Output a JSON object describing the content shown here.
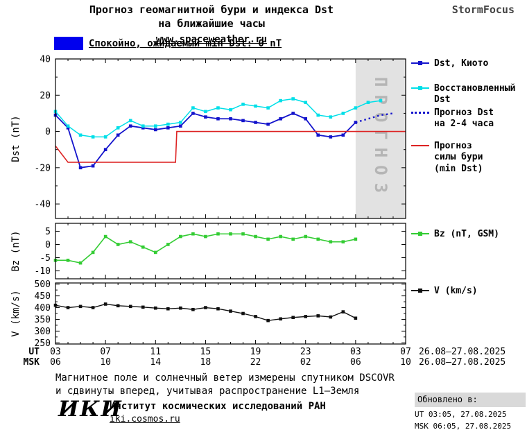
{
  "header": {
    "title_line1": "Прогноз геомагнитной бури и индекса Dst",
    "title_line2": "на ближайшие часы",
    "website": "www.spaceweather.ru",
    "brand": "StormFocus"
  },
  "status_legend": {
    "label": "Спокойно, ожидаемый min Dst: 0 nT",
    "swatch_color": "#0000ee"
  },
  "chart_data": {
    "type": "line",
    "x_domain": [
      3,
      31
    ],
    "x_major_ticks": [
      3,
      7,
      11,
      15,
      19,
      23,
      27,
      31
    ],
    "x_tick_labels_ut": [
      "03",
      "07",
      "11",
      "15",
      "19",
      "23",
      "03",
      "07"
    ],
    "x_tick_labels_msk": [
      "06",
      "10",
      "14",
      "18",
      "22",
      "02",
      "06",
      "10"
    ],
    "x_axis_rows": [
      {
        "label": "UT",
        "date": "26.08–27.08.2025"
      },
      {
        "label": "MSK",
        "date": "26.08–27.08.2025"
      }
    ],
    "forecast_band": {
      "from": 27,
      "to": 31,
      "label": "ПРОГНОЗ",
      "color": "#e2e2e2",
      "label_color": "#b5b5b5"
    },
    "panels": [
      {
        "id": "dst",
        "ylabel": "Dst (nT)",
        "ylim": [
          -48,
          40
        ],
        "yticks": [
          40,
          20,
          0,
          -20,
          -40
        ],
        "yminor": [
          30,
          10,
          -10,
          -30
        ],
        "series": [
          {
            "name": "Dst, Киото",
            "color": "#1414cc",
            "marker": true,
            "width": 1.8,
            "x": [
              3,
              4,
              5,
              6,
              7,
              8,
              9,
              10,
              11,
              12,
              13,
              14,
              15,
              16,
              17,
              18,
              19,
              20,
              21,
              22,
              23,
              24,
              25,
              26,
              27
            ],
            "y": [
              9,
              2,
              -20,
              -19,
              -10,
              -2,
              3,
              2,
              1,
              2,
              3,
              10,
              8,
              7,
              7,
              6,
              5,
              4,
              7,
              10,
              7,
              -2,
              -3,
              -2,
              5
            ]
          },
          {
            "name": "Восстановленный Dst",
            "color": "#00dfe8",
            "marker": true,
            "width": 1.5,
            "x": [
              3,
              4,
              5,
              6,
              7,
              8,
              9,
              10,
              11,
              12,
              13,
              14,
              15,
              16,
              17,
              18,
              19,
              20,
              21,
              22,
              23,
              24,
              25,
              26,
              27,
              28,
              29
            ],
            "y": [
              11,
              3,
              -2,
              -3,
              -3,
              2,
              6,
              3,
              3,
              4,
              5,
              13,
              11,
              13,
              12,
              15,
              14,
              13,
              17,
              18,
              16,
              9,
              8,
              10,
              13,
              16,
              17
            ]
          },
          {
            "name": "Прогноз Dst на 2-4 часа",
            "color": "#1414cc",
            "marker": false,
            "style": "dotted",
            "width": 2.4,
            "x": [
              27,
              28,
              29,
              30
            ],
            "y": [
              5,
              7,
              9,
              10
            ]
          },
          {
            "name": "Прогноз силы бури (min Dst)",
            "color": "#dd2222",
            "marker": false,
            "width": 1.6,
            "x": [
              3,
              4,
              12.6,
              12.7,
              31
            ],
            "y": [
              -8,
              -17,
              -17,
              0,
              0
            ]
          }
        ]
      },
      {
        "id": "bz",
        "ylabel": "Bz (nT)",
        "ylim": [
          -13,
          8
        ],
        "yticks": [
          5,
          0,
          -5,
          -10
        ],
        "yminor": [],
        "series": [
          {
            "name": "Bz (nT, GSM)",
            "color": "#33cc33",
            "marker": true,
            "width": 1.6,
            "x": [
              3,
              4,
              5,
              6,
              7,
              8,
              9,
              10,
              11,
              12,
              13,
              14,
              15,
              16,
              17,
              18,
              19,
              20,
              21,
              22,
              23,
              24,
              25,
              26,
              27
            ],
            "y": [
              -6,
              -6,
              -7,
              -3,
              3,
              0,
              1,
              -1,
              -3,
              0,
              3,
              4,
              3,
              4,
              4,
              4,
              3,
              2,
              3,
              2,
              3,
              2,
              1,
              1,
              2
            ]
          }
        ]
      },
      {
        "id": "v",
        "ylabel": "V (km/s)",
        "ylim": [
          245,
          505
        ],
        "yticks": [
          500,
          450,
          400,
          350,
          300,
          250
        ],
        "yminor": [
          475,
          425,
          375,
          325,
          275
        ],
        "series": [
          {
            "name": "V (km/s)",
            "color": "#101010",
            "marker": true,
            "width": 1.4,
            "x": [
              3,
              4,
              5,
              6,
              7,
              8,
              9,
              10,
              11,
              12,
              13,
              14,
              15,
              16,
              17,
              18,
              19,
              20,
              21,
              22,
              23,
              24,
              25,
              26,
              27
            ],
            "y": [
              410,
              400,
              405,
              400,
              415,
              408,
              405,
              402,
              398,
              395,
              398,
              392,
              400,
              395,
              385,
              375,
              362,
              345,
              352,
              358,
              362,
              365,
              360,
              382,
              355
            ]
          }
        ]
      }
    ],
    "legend": {
      "position": "right",
      "items": [
        {
          "lines": [
            "Dst, Киото"
          ],
          "color": "#1414cc",
          "marker": true,
          "style": "solid"
        },
        {
          "lines": [
            "Восстановленный",
            "Dst"
          ],
          "color": "#00dfe8",
          "marker": true,
          "style": "solid"
        },
        {
          "lines": [
            "Прогноз Dst",
            "на 2-4 часа"
          ],
          "color": "#1414cc",
          "marker": false,
          "style": "dotted"
        },
        {
          "lines": [
            "Прогноз",
            "силы бури",
            "(min Dst)"
          ],
          "color": "#dd2222",
          "marker": false,
          "style": "solid"
        },
        {
          "lines": [
            "Bz (nT, GSM)"
          ],
          "color": "#33cc33",
          "marker": true,
          "style": "solid"
        },
        {
          "lines": [
            "V (km/s)"
          ],
          "color": "#101010",
          "marker": true,
          "style": "solid"
        }
      ]
    }
  },
  "footer": {
    "note_line1": "Магнитное поле и солнечный ветер измерены спутником DSCOVR",
    "note_line2": "и сдвинуты вперед, учитывая распространение L1—Земля",
    "institute_logo": "ИКИ",
    "institute_name": "Институт космических исследований РАН",
    "institute_site": "iki.cosmos.ru",
    "updated": {
      "label": "Обновлено в:",
      "ut": "UT  03:05, 27.08.2025",
      "msk": "MSK 06:05, 27.08.2025"
    }
  }
}
